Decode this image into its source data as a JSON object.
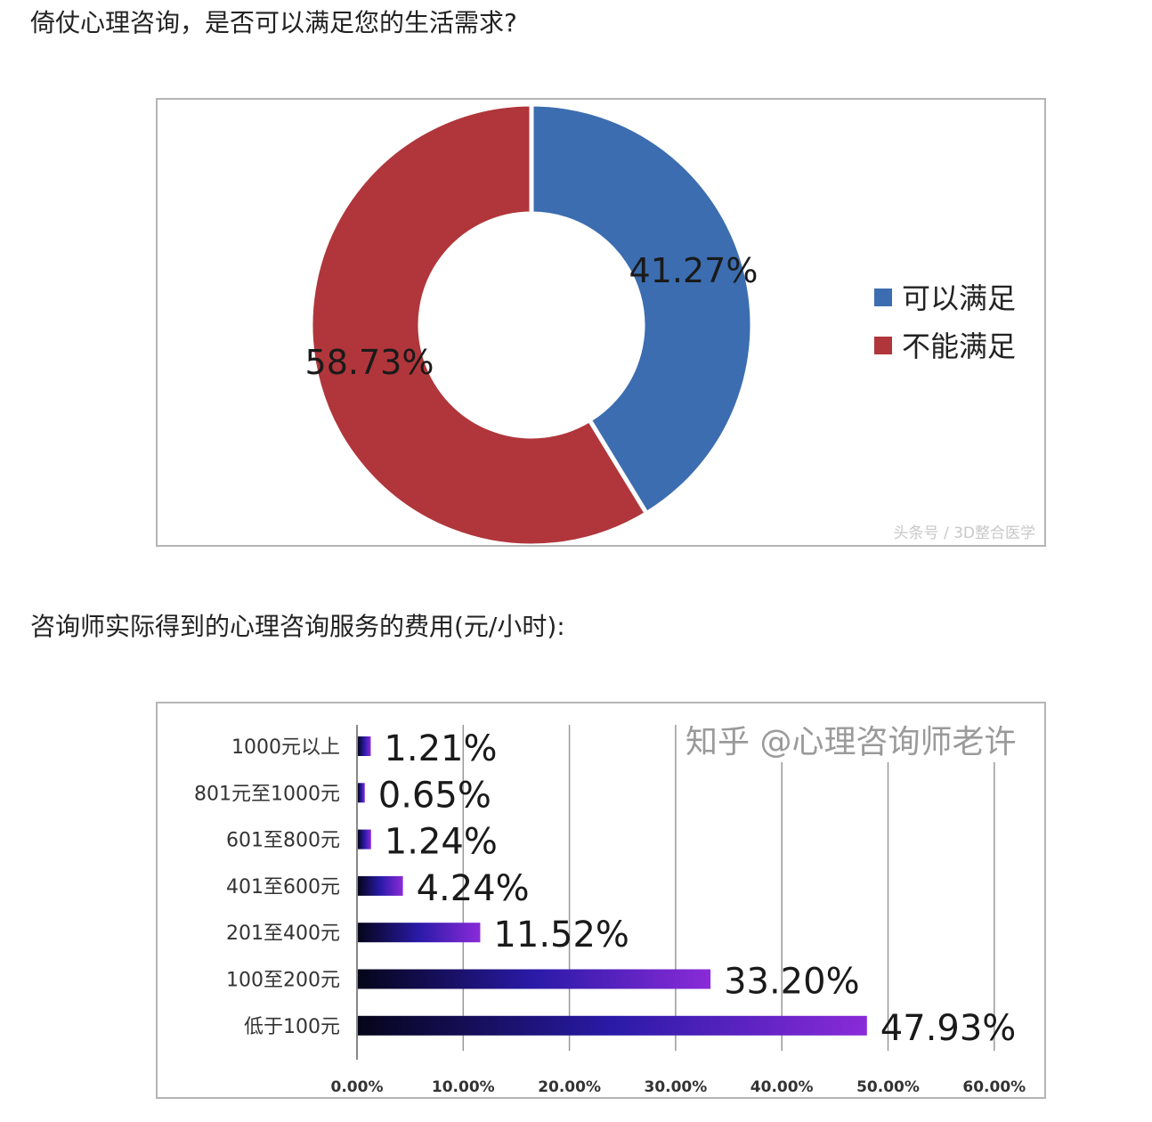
{
  "question1": "倚仗心理咨询，是否可以满足您的生活需求?",
  "question2": "咨询师实际得到的心理咨询服务的费用(元/小时):",
  "chart_data": [
    {
      "type": "pie",
      "style": "donut",
      "categories": [
        "可以满足",
        "不能满足"
      ],
      "values": [
        41.27,
        58.73
      ],
      "labels": [
        "41.27%",
        "58.73%"
      ],
      "colors": [
        "#3c6db0",
        "#b0363b"
      ],
      "legend": "right",
      "watermark": "头条号 / 3D整合医学"
    },
    {
      "type": "bar",
      "orientation": "horizontal",
      "categories": [
        "1000元以上",
        "801元至1000元",
        "601至800元",
        "401至600元",
        "201至400元",
        "100至200元",
        "低于100元"
      ],
      "values": [
        1.21,
        0.65,
        1.24,
        4.24,
        11.52,
        33.2,
        47.93
      ],
      "labels": [
        "1.21%",
        "0.65%",
        "1.24%",
        "4.24%",
        "11.52%",
        "33.20%",
        "47.93%"
      ],
      "xlim": [
        0,
        60
      ],
      "xticks": [
        "0.00%",
        "10.00%",
        "20.00%",
        "30.00%",
        "40.00%",
        "50.00%",
        "60.00%"
      ],
      "grid": true,
      "bar_gradient": [
        "#05051a",
        "#2a1aa8",
        "#8a2bd8"
      ]
    }
  ],
  "watermark": "知乎 @心理咨询师老许"
}
